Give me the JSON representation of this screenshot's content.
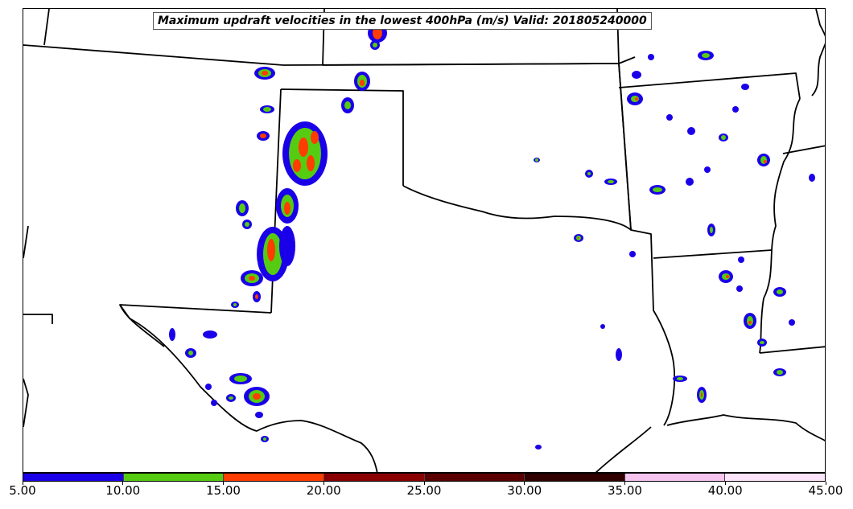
{
  "title": "Maximum updraft velocities in the lowest 400hPa (m/s) Valid: 201805240000",
  "colorbar": {
    "tick_labels": [
      "5.00",
      "10.00",
      "15.00",
      "20.00",
      "25.00",
      "30.00",
      "35.00",
      "40.00",
      "45.00"
    ],
    "segments": [
      {
        "range": "5-10",
        "color": "#1a00e8"
      },
      {
        "range": "10-15",
        "color": "#55cc11"
      },
      {
        "range": "15-20",
        "color": "#ff3d00"
      },
      {
        "range": "20-25",
        "color": "#8a0000"
      },
      {
        "range": "25-30",
        "color": "#5a0000"
      },
      {
        "range": "30-35",
        "color": "#300000"
      },
      {
        "range": "35-40",
        "color": "#f7c4f0"
      },
      {
        "range": "40-45",
        "color": "#fde6fb"
      }
    ]
  }
}
